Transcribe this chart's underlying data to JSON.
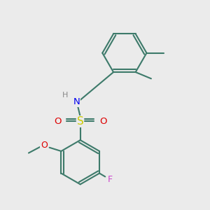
{
  "bg": "#ebebeb",
  "bond_color": "#3d7a6a",
  "bond_lw": 1.5,
  "S_color": "#cccc00",
  "O_color": "#dd0000",
  "N_color": "#0000ee",
  "F_color": "#cc44cc",
  "H_color": "#888888",
  "label_fs": 8.5,
  "ring_r": 0.85,
  "xlim": [
    0,
    10
  ],
  "ylim": [
    0,
    10
  ]
}
